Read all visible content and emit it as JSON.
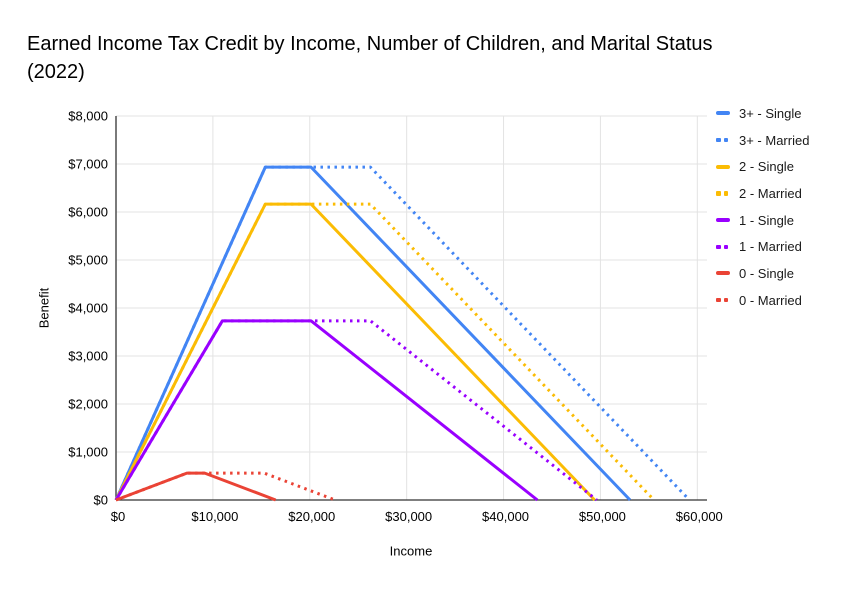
{
  "title": "Earned Income Tax Credit by Income, Number of Children, and Marital Status (2022)",
  "chart_data": {
    "type": "line",
    "title": "Earned Income Tax Credit by Income, Number of Children, and Marital Status (2022)",
    "xlabel": "Income",
    "ylabel": "Benefit",
    "xlim": [
      0,
      61000
    ],
    "ylim": [
      0,
      8000
    ],
    "grid": true,
    "legend_position": "right",
    "x_ticks": [
      0,
      10000,
      20000,
      30000,
      40000,
      50000,
      60000
    ],
    "x_tick_labels": [
      "$0",
      "$10,000",
      "$20,000",
      "$30,000",
      "$40,000",
      "$50,000",
      "$60,000"
    ],
    "y_ticks": [
      0,
      1000,
      2000,
      3000,
      4000,
      5000,
      6000,
      7000,
      8000
    ],
    "y_tick_labels": [
      "$0",
      "$1,000",
      "$2,000",
      "$3,000",
      "$4,000",
      "$5,000",
      "$6,000",
      "$7,000",
      "$8,000"
    ],
    "series": [
      {
        "name": "3+ - Single",
        "color": "#4285f4",
        "style": "solid",
        "points": [
          [
            0,
            0
          ],
          [
            15410,
            6935
          ],
          [
            20130,
            6935
          ],
          [
            53057,
            0
          ]
        ]
      },
      {
        "name": "3+ - Married",
        "color": "#4285f4",
        "style": "dotted",
        "points": [
          [
            0,
            0
          ],
          [
            15410,
            6935
          ],
          [
            26260,
            6935
          ],
          [
            59187,
            0
          ]
        ]
      },
      {
        "name": "2 - Single",
        "color": "#fbbc04",
        "style": "solid",
        "points": [
          [
            0,
            0
          ],
          [
            15410,
            6164
          ],
          [
            20130,
            6164
          ],
          [
            49399,
            0
          ]
        ]
      },
      {
        "name": "2 - Married",
        "color": "#fbbc04",
        "style": "dotted",
        "points": [
          [
            0,
            0
          ],
          [
            15410,
            6164
          ],
          [
            26260,
            6164
          ],
          [
            55529,
            0
          ]
        ]
      },
      {
        "name": "1 - Single",
        "color": "#9900ff",
        "style": "solid",
        "points": [
          [
            0,
            0
          ],
          [
            10980,
            3733
          ],
          [
            20130,
            3733
          ],
          [
            43492,
            0
          ]
        ]
      },
      {
        "name": "1 - Married",
        "color": "#9900ff",
        "style": "dotted",
        "points": [
          [
            0,
            0
          ],
          [
            10980,
            3733
          ],
          [
            26260,
            3733
          ],
          [
            49622,
            0
          ]
        ]
      },
      {
        "name": "0 - Single",
        "color": "#ea4335",
        "style": "solid",
        "points": [
          [
            0,
            0
          ],
          [
            7320,
            560
          ],
          [
            9160,
            560
          ],
          [
            16480,
            0
          ]
        ]
      },
      {
        "name": "0 - Married",
        "color": "#ea4335",
        "style": "dotted",
        "points": [
          [
            0,
            0
          ],
          [
            7320,
            560
          ],
          [
            15290,
            560
          ],
          [
            22610,
            0
          ]
        ]
      }
    ],
    "colors": {
      "gridline": "#e3e3e3",
      "axis": "#333333",
      "tick_text": "#000000",
      "legend_text": "#1a1a1a",
      "title_text": "#000000"
    }
  }
}
